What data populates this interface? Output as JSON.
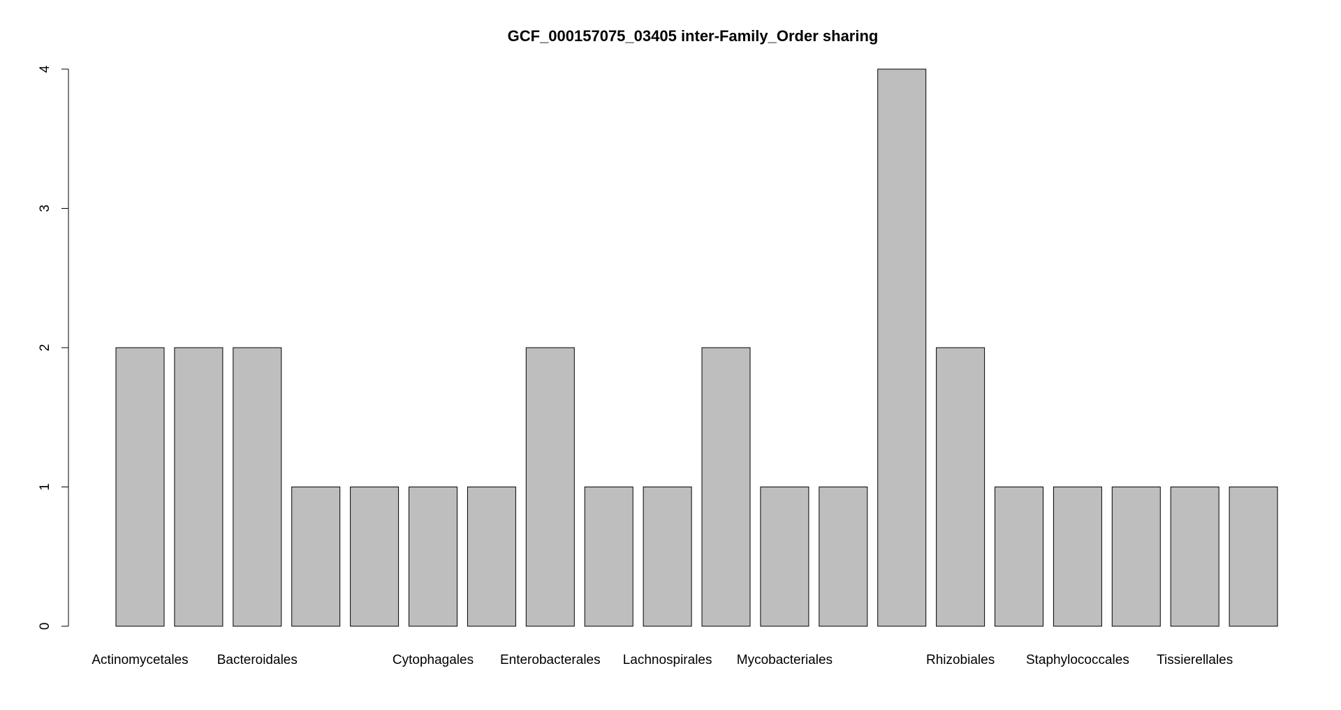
{
  "chart_data": {
    "type": "bar",
    "title": "GCF_000157075_03405 inter-Family_Order sharing",
    "xlabel": "",
    "ylabel": "",
    "ylim": [
      0,
      4
    ],
    "yticks": [
      0,
      1,
      2,
      3,
      4
    ],
    "grid": false,
    "bar_color": "#bebebe",
    "bar_border_color": "#000000",
    "categories": [
      "Actinomycetales",
      "",
      "Bacteroidales",
      "",
      "",
      "Cytophagales",
      "",
      "Enterobacterales",
      "",
      "Lachnospirales",
      "",
      "Mycobacteriales",
      "",
      "",
      "Rhizobiales",
      "",
      "Staphylococcales",
      "",
      "Tissierellales",
      ""
    ],
    "values": [
      2,
      2,
      2,
      1,
      1,
      1,
      1,
      2,
      1,
      1,
      2,
      1,
      1,
      4,
      2,
      1,
      1,
      1,
      1,
      1
    ]
  }
}
